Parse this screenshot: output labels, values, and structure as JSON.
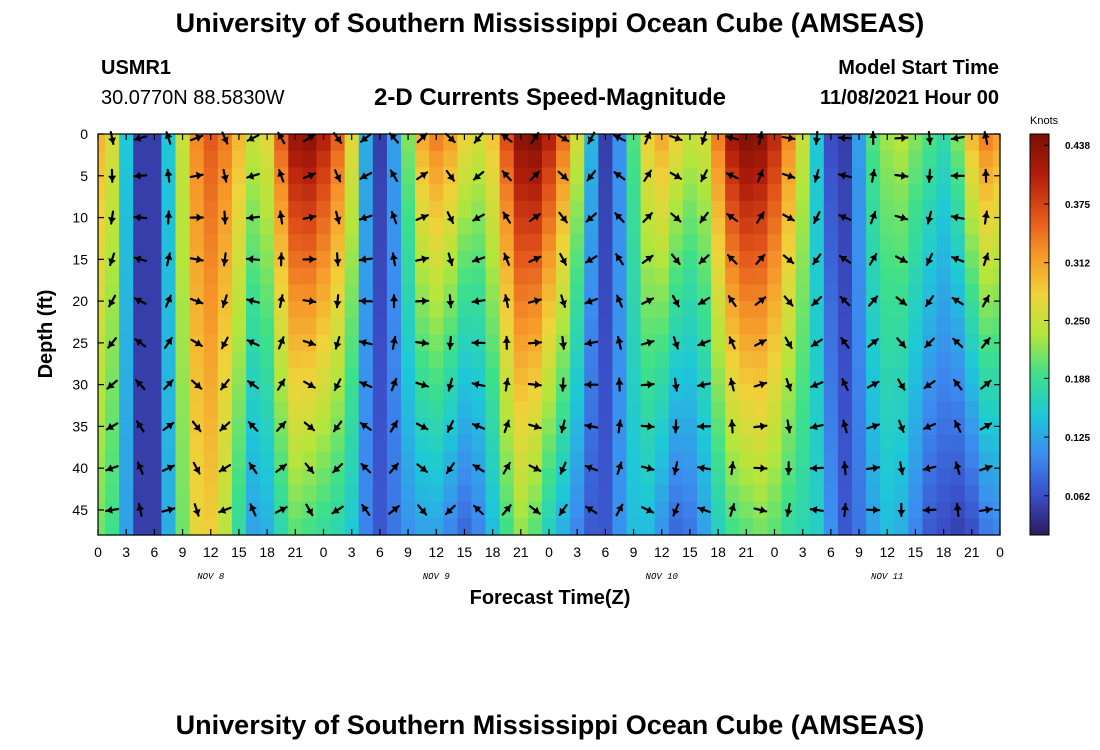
{
  "header": {
    "title": "University of Southern Mississippi Ocean Cube (AMSEAS)",
    "station_id": "USMR1",
    "station_coords": "30.0770N  88.5830W",
    "plot_title": "2-D Currents Speed-Magnitude",
    "model_start_label": "Model Start Time",
    "model_start_value": "11/08/2021 Hour 00"
  },
  "footer": {
    "title": "University of Southern Mississippi Ocean Cube (AMSEAS)"
  },
  "colors": {
    "scale": [
      "#2a1a5e",
      "#3b4fc9",
      "#3c8cf0",
      "#1ec8d8",
      "#3ee08a",
      "#b4e63c",
      "#f0d23a",
      "#f7962a",
      "#e0501a",
      "#b01c0a",
      "#7a1005"
    ]
  },
  "chart_data": {
    "type": "heatmap",
    "title": "2-D Currents Speed-Magnitude",
    "xlabel": "Forecast Time(Z)",
    "ylabel": "Depth (ft)",
    "x_ticks": [
      "0",
      "3",
      "6",
      "9",
      "12",
      "15",
      "18",
      "21",
      "0",
      "3",
      "6",
      "9",
      "12",
      "15",
      "18",
      "21",
      "0",
      "3",
      "6",
      "9",
      "12",
      "15",
      "18",
      "21",
      "0",
      "3",
      "6",
      "9",
      "12",
      "15",
      "18",
      "21",
      "0"
    ],
    "day_labels": [
      {
        "label": "NOV 8",
        "hour": 12
      },
      {
        "label": "NOV 9",
        "hour": 36
      },
      {
        "label": "NOV 10",
        "hour": 60
      },
      {
        "label": "NOV 11",
        "hour": 84
      }
    ],
    "x_range_hours": [
      0,
      96
    ],
    "y_ticks": [
      "0",
      "5",
      "10",
      "15",
      "20",
      "25",
      "30",
      "35",
      "40",
      "45"
    ],
    "y_range_ft": [
      0,
      48
    ],
    "colorbar": {
      "unit": "Knots",
      "min": 0.02,
      "max": 0.45,
      "tick_labels": [
        "0.438",
        "0.375",
        "0.312",
        "0.250",
        "0.188",
        "0.125",
        "0.062"
      ],
      "tick_values": [
        0.438,
        0.375,
        0.312,
        0.25,
        0.188,
        0.125,
        0.062
      ]
    },
    "speed_hours": [
      0,
      1.5,
      3,
      4.5,
      6,
      7.5,
      9,
      10.5,
      12,
      13.5,
      15,
      16.5,
      18,
      19.5,
      21,
      22.5,
      24,
      25.5,
      27,
      28.5,
      30,
      31.5,
      33,
      34.5,
      36,
      37.5,
      39,
      40.5,
      42,
      43.5,
      45,
      46.5,
      48,
      49.5,
      51,
      52.5,
      54,
      55.5,
      57,
      58.5,
      60,
      61.5,
      63,
      64.5,
      66,
      67.5,
      69,
      70.5,
      72,
      73.5,
      75,
      76.5,
      78,
      79.5,
      81,
      82.5,
      84,
      85.5,
      87,
      88.5,
      90,
      91.5,
      93,
      94.5,
      96
    ],
    "speed_surface": [
      0.3,
      0.26,
      0.15,
      0.05,
      0.05,
      0.15,
      0.25,
      0.33,
      0.36,
      0.34,
      0.3,
      0.25,
      0.27,
      0.36,
      0.43,
      0.44,
      0.41,
      0.36,
      0.27,
      0.13,
      0.05,
      0.12,
      0.22,
      0.31,
      0.34,
      0.32,
      0.28,
      0.26,
      0.29,
      0.37,
      0.44,
      0.45,
      0.41,
      0.35,
      0.26,
      0.14,
      0.05,
      0.11,
      0.2,
      0.28,
      0.31,
      0.28,
      0.25,
      0.26,
      0.34,
      0.42,
      0.45,
      0.44,
      0.4,
      0.33,
      0.25,
      0.15,
      0.06,
      0.05,
      0.12,
      0.2,
      0.23,
      0.24,
      0.22,
      0.2,
      0.18,
      0.22,
      0.3,
      0.34,
      0.32
    ],
    "speed_bottom": [
      0.21,
      0.19,
      0.12,
      0.05,
      0.05,
      0.13,
      0.21,
      0.27,
      0.28,
      0.24,
      0.18,
      0.12,
      0.13,
      0.17,
      0.2,
      0.19,
      0.18,
      0.17,
      0.15,
      0.1,
      0.07,
      0.09,
      0.11,
      0.12,
      0.12,
      0.1,
      0.08,
      0.1,
      0.14,
      0.19,
      0.22,
      0.2,
      0.16,
      0.13,
      0.1,
      0.07,
      0.07,
      0.11,
      0.14,
      0.14,
      0.11,
      0.08,
      0.09,
      0.12,
      0.16,
      0.19,
      0.2,
      0.21,
      0.2,
      0.18,
      0.17,
      0.16,
      0.11,
      0.07,
      0.09,
      0.12,
      0.14,
      0.13,
      0.1,
      0.07,
      0.06,
      0.05,
      0.06,
      0.09,
      0.1
    ],
    "vector_depths_ft": [
      0,
      5,
      10,
      15,
      20,
      25,
      30,
      35,
      40,
      45
    ]
  }
}
